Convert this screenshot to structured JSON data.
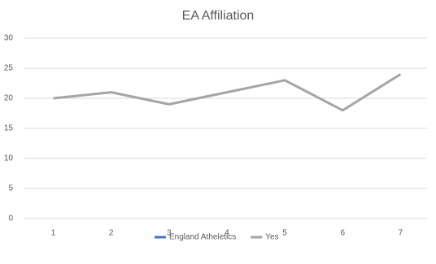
{
  "chart_data": {
    "type": "line",
    "title": "EA Affiliation",
    "categories": [
      "1",
      "2",
      "3",
      "4",
      "5",
      "6",
      "7"
    ],
    "series": [
      {
        "name": "England Atheletics",
        "color": "#4472c4",
        "values": [
          null,
          null,
          null,
          null,
          null,
          null,
          null
        ]
      },
      {
        "name": "Yes",
        "color": "#a5a5a5",
        "values": [
          20,
          21,
          19,
          21,
          23,
          18,
          24
        ]
      }
    ],
    "ylim": [
      0,
      30
    ],
    "yticks": [
      0,
      5,
      10,
      15,
      20,
      25,
      30
    ],
    "grid": true,
    "legend": "bottom"
  }
}
